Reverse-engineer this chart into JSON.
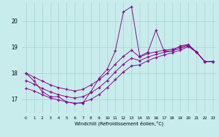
{
  "xlabel": "Windchill (Refroidissement éolien,°C)",
  "background_color": "#c8ecec",
  "grid_color": "#aad4d4",
  "line_color": "#880088",
  "xlim": [
    -0.5,
    23.5
  ],
  "ylim": [
    16.5,
    20.7
  ],
  "yticks": [
    17,
    18,
    19,
    20
  ],
  "xticks": [
    0,
    1,
    2,
    3,
    4,
    5,
    6,
    7,
    8,
    9,
    10,
    11,
    12,
    13,
    14,
    15,
    16,
    17,
    18,
    19,
    20,
    21,
    22,
    23
  ],
  "y_spiky": [
    18.0,
    17.7,
    17.3,
    17.1,
    17.1,
    16.9,
    16.85,
    16.85,
    17.3,
    17.8,
    18.15,
    18.85,
    20.35,
    20.55,
    18.65,
    18.8,
    19.65,
    18.85,
    18.85,
    19.05,
    19.1,
    18.8,
    18.45,
    18.45
  ],
  "y_upper": [
    18.0,
    17.85,
    17.7,
    17.55,
    17.45,
    17.38,
    17.32,
    17.38,
    17.55,
    17.75,
    18.0,
    18.35,
    18.65,
    18.88,
    18.62,
    18.75,
    18.82,
    18.88,
    18.92,
    19.0,
    19.08,
    18.82,
    18.45,
    18.45
  ],
  "y_mid": [
    17.72,
    17.58,
    17.42,
    17.28,
    17.18,
    17.1,
    17.05,
    17.1,
    17.25,
    17.45,
    17.72,
    18.05,
    18.35,
    18.58,
    18.48,
    18.62,
    18.72,
    18.8,
    18.85,
    18.95,
    19.05,
    18.82,
    18.45,
    18.45
  ],
  "y_lower": [
    17.42,
    17.32,
    17.18,
    17.05,
    16.98,
    16.9,
    16.85,
    16.88,
    17.0,
    17.18,
    17.45,
    17.75,
    18.05,
    18.28,
    18.32,
    18.48,
    18.6,
    18.7,
    18.78,
    18.88,
    19.02,
    18.8,
    18.45,
    18.45
  ]
}
